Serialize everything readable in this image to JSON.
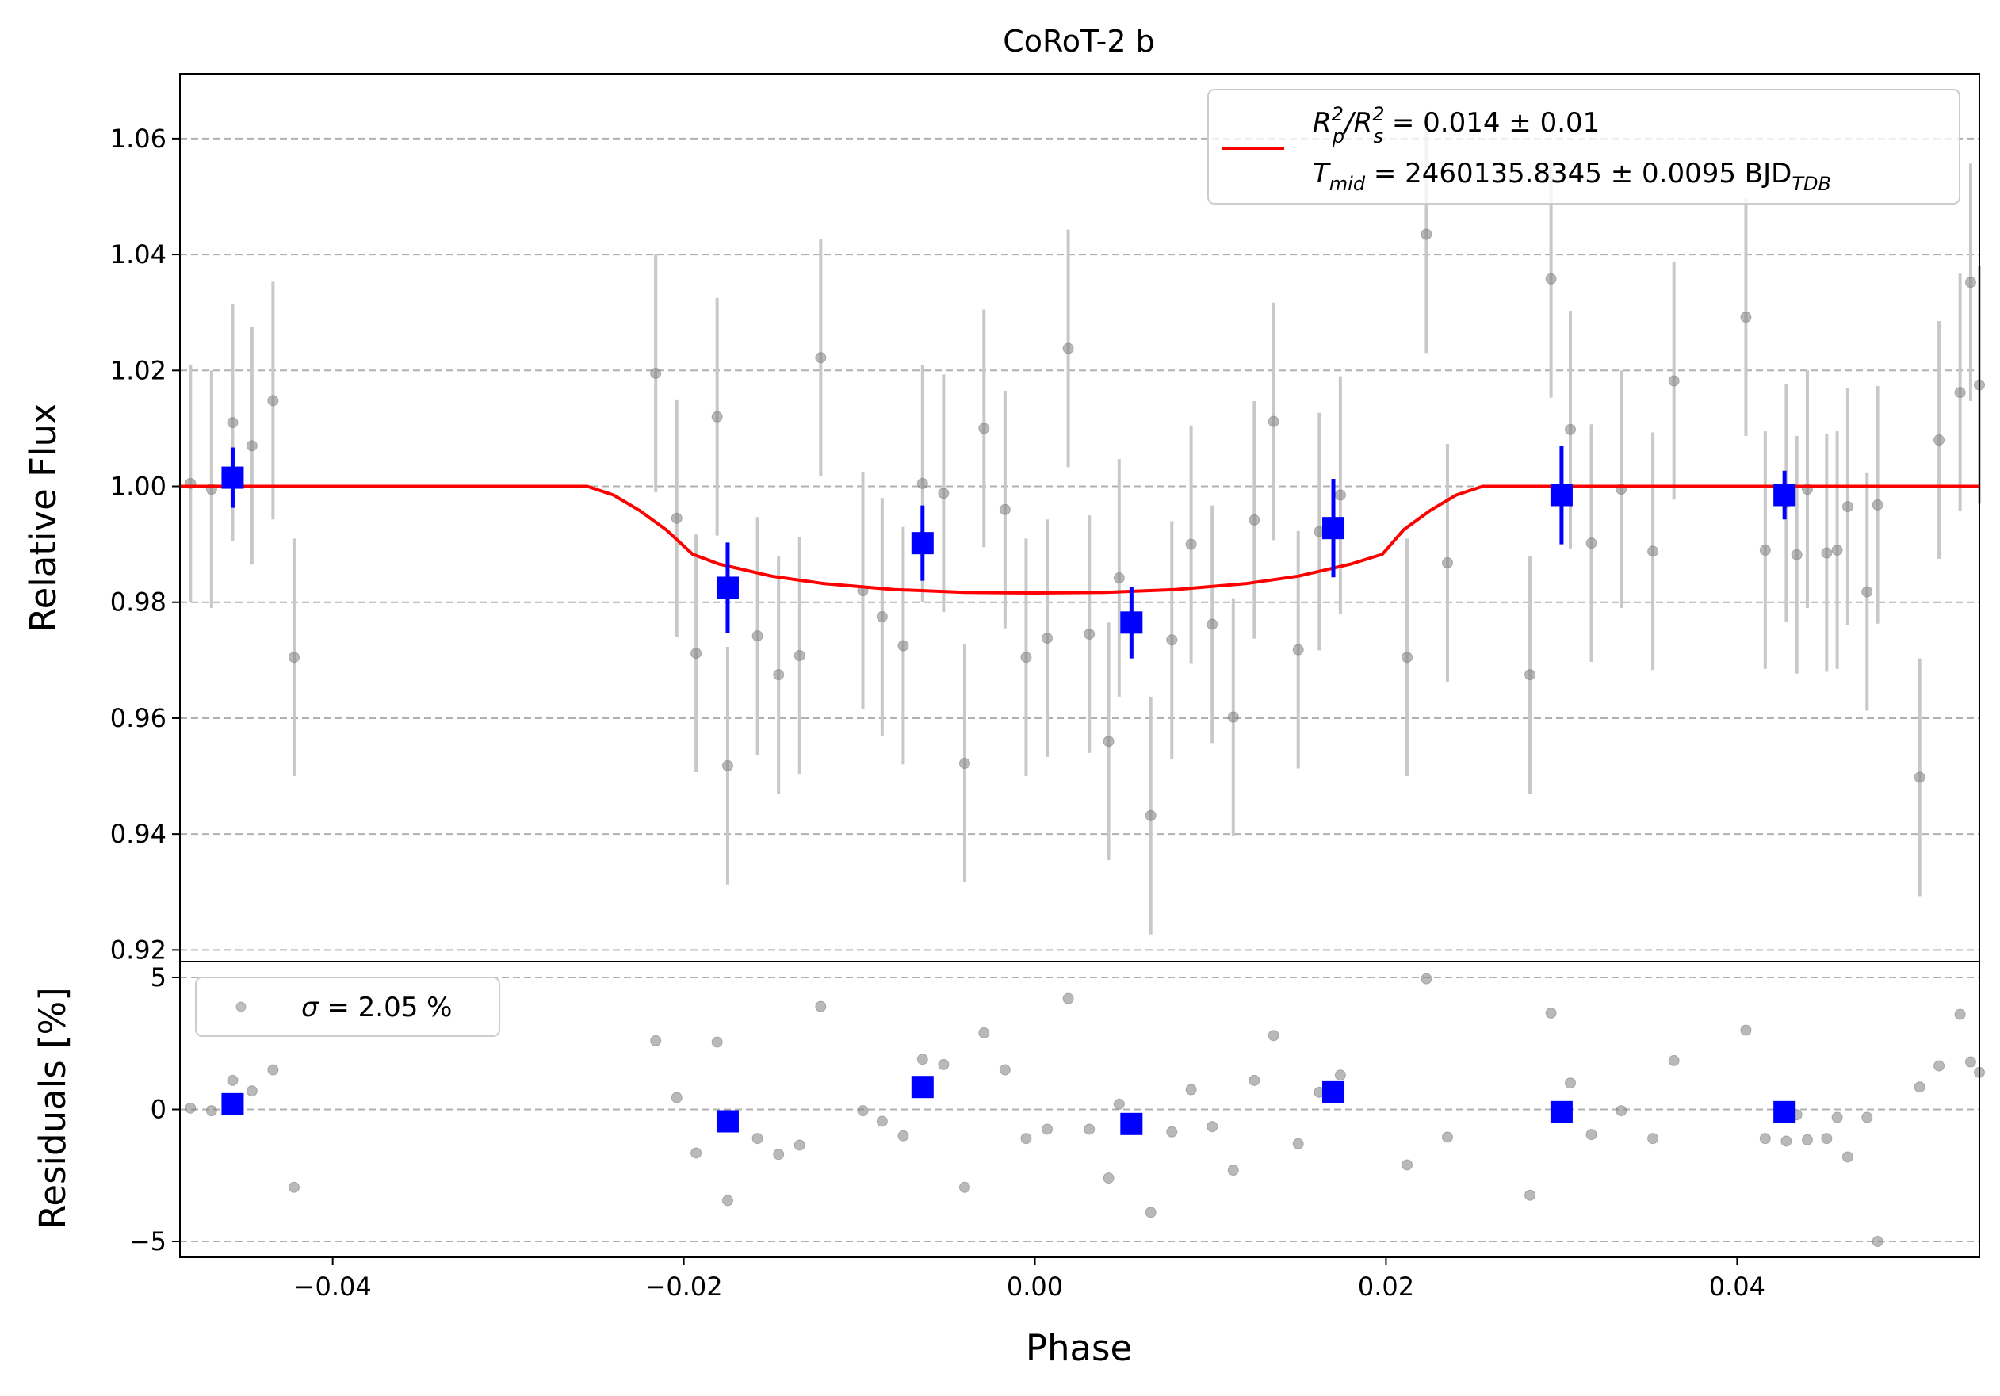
{
  "chart_data": [
    {
      "type": "scatter",
      "panel": "top",
      "title": "CoRoT-2 b",
      "xlabel": "",
      "ylabel": "Relative Flux",
      "xlim": [
        -0.0487,
        0.0538
      ],
      "ylim": [
        0.918,
        1.0712
      ],
      "yticks": [
        0.92,
        0.94,
        0.96,
        0.98,
        1.0,
        1.02,
        1.04,
        1.06
      ],
      "ytick_labels": [
        "0.92",
        "0.94",
        "0.96",
        "0.98",
        "1.00",
        "1.02",
        "1.04",
        "1.06"
      ],
      "grid": "horizontal-dashed",
      "legend": {
        "placement": "top-right",
        "line1": {
          "main": "R",
          "sup1": "2",
          "sub1": "p",
          "slash": "/R",
          "sup2": "2",
          "sub2": "s",
          "rest": " = 0.014 ± 0.01"
        },
        "line2": {
          "main": "T",
          "sub1": "mid",
          "rest": " = 2460135.8345 ± 0.0095 BJD",
          "sub2": "TDB"
        }
      },
      "colors": {
        "model": "#ff0000",
        "binned": "#0000ff",
        "raw": "#7f7f7f",
        "errorbar": "#c8c8c8"
      },
      "series": [
        {
          "name": "model",
          "kind": "line",
          "x": [
            -0.0487,
            -0.0255,
            -0.024,
            -0.0225,
            -0.021,
            -0.0195,
            -0.018,
            -0.015,
            -0.012,
            -0.008,
            -0.004,
            0.0,
            0.004,
            0.008,
            0.012,
            0.015,
            0.018,
            0.0198,
            0.021,
            0.0225,
            0.024,
            0.0255,
            0.0538
          ],
          "y": [
            1.0,
            1.0,
            0.9985,
            0.9958,
            0.9925,
            0.9883,
            0.9866,
            0.9845,
            0.9832,
            0.9822,
            0.9817,
            0.9816,
            0.9817,
            0.9822,
            0.9832,
            0.9845,
            0.9866,
            0.9883,
            0.9925,
            0.9958,
            0.9985,
            1.0,
            1.0
          ]
        },
        {
          "name": "raw",
          "kind": "errorbar-scatter",
          "x": [
            -0.0488,
            -0.0481,
            -0.0469,
            -0.0457,
            -0.0446,
            -0.0434,
            -0.0422,
            -0.0216,
            -0.0204,
            -0.0193,
            -0.0181,
            -0.0175,
            -0.0158,
            -0.0146,
            -0.0134,
            -0.0122,
            -0.0098,
            -0.0087,
            -0.0075,
            -0.0064,
            -0.0052,
            -0.004,
            -0.0029,
            -0.0017,
            -0.0005,
            0.0007,
            0.0019,
            0.0031,
            0.0042,
            0.0048,
            0.0066,
            0.0078,
            0.0089,
            0.0101,
            0.0113,
            0.0125,
            0.0136,
            0.015,
            0.0162,
            0.0174,
            0.0212,
            0.0223,
            0.0235,
            0.0282,
            0.0294,
            0.0305,
            0.0317,
            0.0334,
            0.0352,
            0.0364,
            0.0405,
            0.0416,
            0.0428,
            0.0434,
            0.044,
            0.0451,
            0.0457,
            0.0463,
            0.0474,
            0.048,
            0.0504,
            0.0515,
            0.0527,
            0.0533,
            0.0538
          ],
          "y": [
            1.0095,
            1.0005,
            0.9995,
            1.011,
            1.007,
            1.0148,
            0.9705,
            1.0195,
            0.9945,
            0.9712,
            1.012,
            0.9518,
            0.9742,
            0.9675,
            0.9708,
            1.0222,
            0.982,
            0.9775,
            0.9725,
            1.0005,
            0.9988,
            0.9522,
            1.01,
            0.996,
            0.9705,
            0.9738,
            1.0238,
            0.9745,
            0.956,
            0.9842,
            0.9432,
            0.9735,
            0.99,
            0.9762,
            0.9602,
            0.9942,
            1.0112,
            0.9718,
            0.9922,
            0.9985,
            0.9705,
            1.0435,
            0.9868,
            0.9675,
            1.0358,
            1.0098,
            0.9902,
            0.9995,
            0.9888,
            1.0182,
            1.0292,
            0.989,
            0.9972,
            0.9882,
            0.9995,
            0.9885,
            0.989,
            0.9965,
            0.9818,
            0.9968,
            0.9498,
            1.008,
            1.0162,
            1.0352,
            1.0175
          ],
          "yerr": 0.0205
        },
        {
          "name": "binned",
          "kind": "errorbar-square",
          "x": [
            -0.0457,
            -0.0175,
            -0.0064,
            0.0055,
            0.017,
            0.03,
            0.0427
          ],
          "y": [
            1.0015,
            0.9825,
            0.9902,
            0.9765,
            0.9928,
            0.9985,
            0.9985
          ],
          "yerr": [
            0.0052,
            0.0078,
            0.0065,
            0.0062,
            0.0085,
            0.0085,
            0.0042
          ]
        }
      ]
    },
    {
      "type": "scatter",
      "panel": "bottom",
      "xlabel": "Phase",
      "ylabel": "Residuals [%]",
      "xlim": [
        -0.0487,
        0.0538
      ],
      "ylim": [
        -5.6,
        5.6
      ],
      "xticks": [
        -0.04,
        -0.02,
        0.0,
        0.02,
        0.04
      ],
      "xtick_labels": [
        "−0.04",
        "−0.02",
        "0.00",
        "0.02",
        "0.04"
      ],
      "yticks": [
        -5,
        0,
        5
      ],
      "ytick_labels": [
        "−5",
        "0",
        "5"
      ],
      "grid": "horizontal-dashed",
      "legend": {
        "placement": "top-left",
        "label_symbol": "σ",
        "label_rest": " = 2.05 %"
      },
      "series": [
        {
          "name": "raw",
          "x": [
            -0.0488,
            -0.0481,
            -0.0469,
            -0.0457,
            -0.0446,
            -0.0434,
            -0.0422,
            -0.0216,
            -0.0204,
            -0.0193,
            -0.0181,
            -0.0175,
            -0.0158,
            -0.0146,
            -0.0134,
            -0.0122,
            -0.0098,
            -0.0087,
            -0.0075,
            -0.0064,
            -0.0052,
            -0.004,
            -0.0029,
            -0.0017,
            -0.0005,
            0.0007,
            0.0019,
            0.0031,
            0.0042,
            0.0048,
            0.0066,
            0.0078,
            0.0089,
            0.0101,
            0.0113,
            0.0125,
            0.0136,
            0.015,
            0.0162,
            0.0174,
            0.0212,
            0.0223,
            0.0235,
            0.0282,
            0.0294,
            0.0305,
            0.0317,
            0.0334,
            0.0352,
            0.0364,
            0.0405,
            0.0416,
            0.0428,
            0.0434,
            0.044,
            0.0451,
            0.0457,
            0.0463,
            0.0474,
            0.048,
            0.0504,
            0.0515,
            0.0527,
            0.0533,
            0.0538
          ],
          "y": [
            0.95,
            0.05,
            -0.05,
            1.1,
            0.7,
            1.5,
            -2.95,
            2.6,
            0.45,
            -1.65,
            2.55,
            -3.45,
            -1.1,
            -1.7,
            -1.35,
            3.9,
            -0.05,
            -0.45,
            -1.0,
            1.9,
            1.7,
            -2.95,
            2.9,
            1.5,
            -1.1,
            -0.75,
            4.2,
            -0.75,
            -2.6,
            0.2,
            -3.9,
            -0.85,
            0.75,
            -0.65,
            -2.3,
            1.1,
            2.8,
            -1.3,
            0.65,
            1.3,
            -2.1,
            4.95,
            -1.05,
            -3.25,
            3.65,
            1.0,
            -0.95,
            -0.05,
            -1.1,
            1.85,
            3.0,
            -1.1,
            -1.2,
            -0.2,
            -1.15,
            -1.1,
            -0.3,
            -1.8,
            -0.3,
            -5.0,
            0.85,
            1.65,
            3.6,
            1.8,
            1.4
          ],
          "color": "#7f7f7f"
        },
        {
          "name": "binned",
          "x": [
            -0.0457,
            -0.0175,
            -0.0064,
            0.0055,
            0.017,
            0.03,
            0.0427
          ],
          "y": [
            0.2,
            -0.45,
            0.85,
            -0.55,
            0.65,
            -0.1,
            -0.1
          ],
          "color": "#0000ff"
        }
      ]
    }
  ]
}
